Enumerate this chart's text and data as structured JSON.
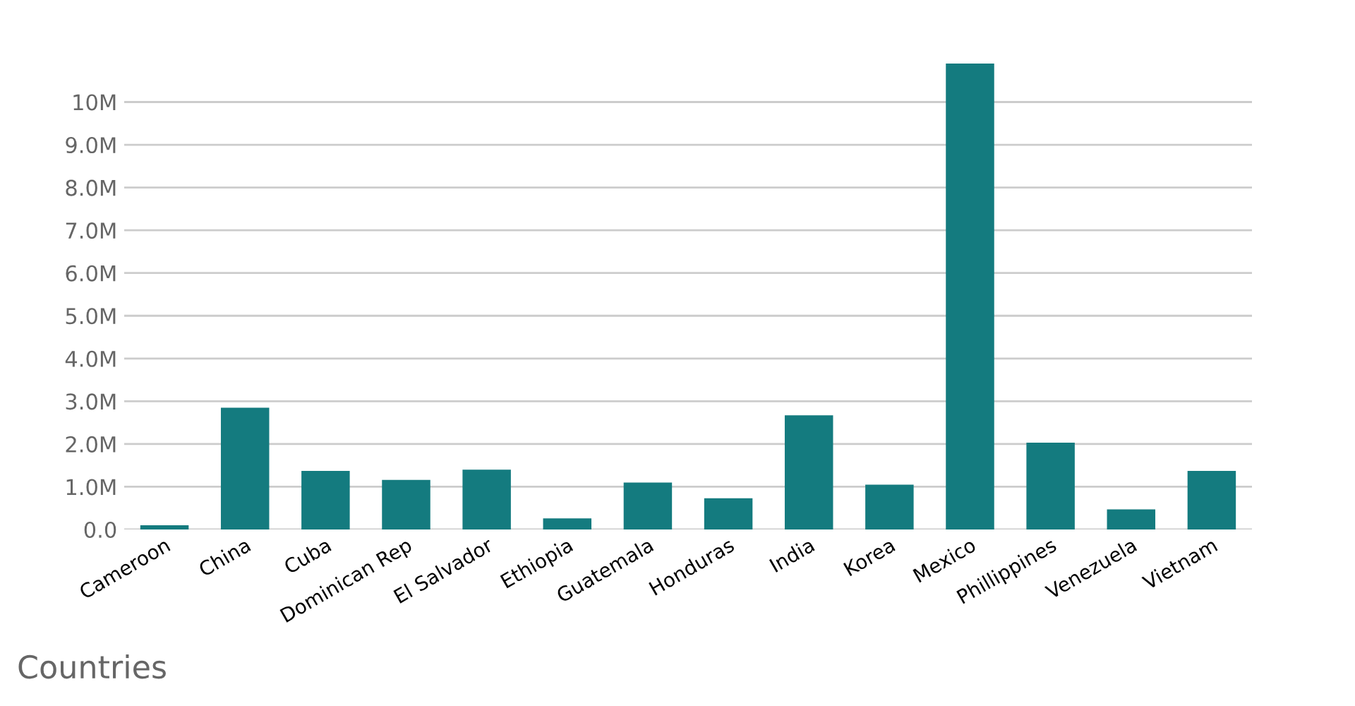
{
  "chart_data": {
    "type": "bar",
    "xlabel": "Countries",
    "categories": [
      "Cameroon",
      "China",
      "Cuba",
      "Dominican Rep",
      "El Salvador",
      "Ethiopia",
      "Guatemala",
      "Honduras",
      "India",
      "Korea",
      "Mexico",
      "Phillippines",
      "Venezuela",
      "Vietnam"
    ],
    "values": [
      0.1,
      2.85,
      1.37,
      1.16,
      1.4,
      0.26,
      1.1,
      0.73,
      2.67,
      1.05,
      10.9,
      2.03,
      0.47,
      1.37
    ],
    "color": "#147b7f",
    "ylim": [
      0,
      10.9
    ],
    "yticks": [
      {
        "value": 0,
        "label": "0.0"
      },
      {
        "value": 1,
        "label": "1.0M"
      },
      {
        "value": 2,
        "label": "2.0M"
      },
      {
        "value": 3,
        "label": "3.0M"
      },
      {
        "value": 4,
        "label": "4.0M"
      },
      {
        "value": 5,
        "label": "5.0M"
      },
      {
        "value": 6,
        "label": "6.0M"
      },
      {
        "value": 7,
        "label": "7.0M"
      },
      {
        "value": 8,
        "label": "8.0M"
      },
      {
        "value": 9,
        "label": "9.0M"
      },
      {
        "value": 10,
        "label": "10M"
      }
    ],
    "grid": "y"
  }
}
